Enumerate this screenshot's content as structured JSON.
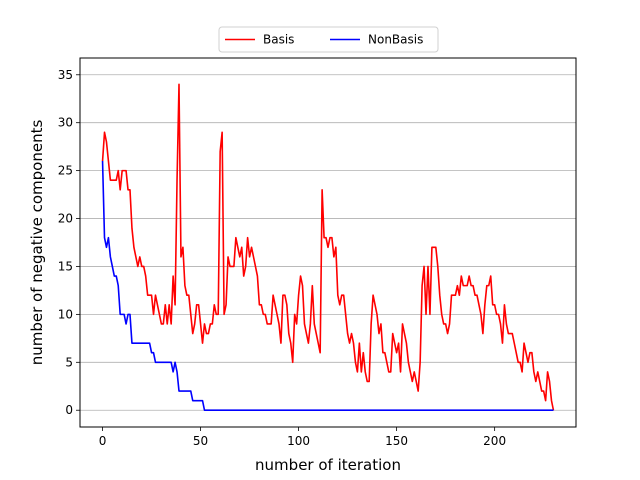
{
  "chart_data": {
    "type": "line",
    "title": "",
    "xlabel": "number of iteration",
    "ylabel": "number of negative components",
    "xlim": [
      -11.5,
      241.5
    ],
    "ylim": [
      -1.75,
      36.75
    ],
    "xticks": [
      0,
      50,
      100,
      150,
      200
    ],
    "yticks": [
      0,
      5,
      10,
      15,
      20,
      25,
      30,
      35
    ],
    "grid": "horizontal",
    "legend": "top-center",
    "series": [
      {
        "name": "Basis",
        "color": "#ff0000",
        "points": [
          [
            0,
            26
          ],
          [
            1,
            29
          ],
          [
            2,
            28
          ],
          [
            3,
            26
          ],
          [
            4,
            24
          ],
          [
            5,
            24
          ],
          [
            6,
            24
          ],
          [
            7,
            24
          ],
          [
            8,
            25
          ],
          [
            9,
            23
          ],
          [
            10,
            25
          ],
          [
            11,
            25
          ],
          [
            12,
            25
          ],
          [
            13,
            23
          ],
          [
            14,
            23
          ],
          [
            15,
            19
          ],
          [
            16,
            17
          ],
          [
            17,
            16
          ],
          [
            18,
            15
          ],
          [
            19,
            16
          ],
          [
            20,
            15
          ],
          [
            21,
            15
          ],
          [
            22,
            14
          ],
          [
            23,
            12
          ],
          [
            24,
            12
          ],
          [
            25,
            12
          ],
          [
            26,
            10
          ],
          [
            27,
            12
          ],
          [
            28,
            11
          ],
          [
            29,
            10
          ],
          [
            30,
            9
          ],
          [
            31,
            9
          ],
          [
            32,
            11
          ],
          [
            33,
            9
          ],
          [
            34,
            11
          ],
          [
            35,
            9
          ],
          [
            36,
            14
          ],
          [
            37,
            11
          ],
          [
            38,
            24
          ],
          [
            39,
            34
          ],
          [
            40,
            16
          ],
          [
            41,
            17
          ],
          [
            42,
            13
          ],
          [
            43,
            12
          ],
          [
            44,
            12
          ],
          [
            45,
            10
          ],
          [
            46,
            8
          ],
          [
            47,
            9
          ],
          [
            48,
            11
          ],
          [
            49,
            11
          ],
          [
            50,
            9
          ],
          [
            51,
            7
          ],
          [
            52,
            9
          ],
          [
            53,
            8
          ],
          [
            54,
            8
          ],
          [
            55,
            9
          ],
          [
            56,
            9
          ],
          [
            57,
            11
          ],
          [
            58,
            10
          ],
          [
            59,
            10
          ],
          [
            60,
            27
          ],
          [
            61,
            29
          ],
          [
            62,
            10
          ],
          [
            63,
            11
          ],
          [
            64,
            16
          ],
          [
            65,
            15
          ],
          [
            66,
            15
          ],
          [
            67,
            15
          ],
          [
            68,
            18
          ],
          [
            69,
            17
          ],
          [
            70,
            16
          ],
          [
            71,
            17
          ],
          [
            72,
            14
          ],
          [
            73,
            15
          ],
          [
            74,
            18
          ],
          [
            75,
            16
          ],
          [
            76,
            17
          ],
          [
            77,
            16
          ],
          [
            78,
            15
          ],
          [
            79,
            14
          ],
          [
            80,
            11
          ],
          [
            81,
            11
          ],
          [
            82,
            10
          ],
          [
            83,
            10
          ],
          [
            84,
            9
          ],
          [
            85,
            9
          ],
          [
            86,
            9
          ],
          [
            87,
            12
          ],
          [
            88,
            11
          ],
          [
            89,
            10
          ],
          [
            90,
            9
          ],
          [
            91,
            7
          ],
          [
            92,
            12
          ],
          [
            93,
            12
          ],
          [
            94,
            11
          ],
          [
            95,
            8
          ],
          [
            96,
            7
          ],
          [
            97,
            5
          ],
          [
            98,
            10
          ],
          [
            99,
            9
          ],
          [
            100,
            12
          ],
          [
            101,
            14
          ],
          [
            102,
            13
          ],
          [
            103,
            9
          ],
          [
            104,
            8
          ],
          [
            105,
            7
          ],
          [
            106,
            9
          ],
          [
            107,
            13
          ],
          [
            108,
            9
          ],
          [
            109,
            8
          ],
          [
            110,
            7
          ],
          [
            111,
            6
          ],
          [
            112,
            23
          ],
          [
            113,
            18
          ],
          [
            114,
            18
          ],
          [
            115,
            17
          ],
          [
            116,
            18
          ],
          [
            117,
            18
          ],
          [
            118,
            16
          ],
          [
            119,
            17
          ],
          [
            120,
            12
          ],
          [
            121,
            11
          ],
          [
            122,
            12
          ],
          [
            123,
            12
          ],
          [
            124,
            10
          ],
          [
            125,
            8
          ],
          [
            126,
            7
          ],
          [
            127,
            8
          ],
          [
            128,
            7
          ],
          [
            129,
            5
          ],
          [
            130,
            4
          ],
          [
            131,
            7
          ],
          [
            132,
            4
          ],
          [
            133,
            6
          ],
          [
            134,
            4
          ],
          [
            135,
            3
          ],
          [
            136,
            3
          ],
          [
            137,
            9
          ],
          [
            138,
            12
          ],
          [
            139,
            11
          ],
          [
            140,
            10
          ],
          [
            141,
            8
          ],
          [
            142,
            9
          ],
          [
            143,
            6
          ],
          [
            144,
            6
          ],
          [
            145,
            5
          ],
          [
            146,
            4
          ],
          [
            147,
            4
          ],
          [
            148,
            8
          ],
          [
            149,
            7
          ],
          [
            150,
            6
          ],
          [
            151,
            7
          ],
          [
            152,
            4
          ],
          [
            153,
            9
          ],
          [
            154,
            8
          ],
          [
            155,
            7
          ],
          [
            156,
            5
          ],
          [
            157,
            4
          ],
          [
            158,
            3
          ],
          [
            159,
            4
          ],
          [
            160,
            3
          ],
          [
            161,
            2
          ],
          [
            162,
            5
          ],
          [
            163,
            13
          ],
          [
            164,
            15
          ],
          [
            165,
            10
          ],
          [
            166,
            15
          ],
          [
            167,
            10
          ],
          [
            168,
            17
          ],
          [
            169,
            17
          ],
          [
            170,
            17
          ],
          [
            171,
            15
          ],
          [
            172,
            12
          ],
          [
            173,
            10
          ],
          [
            174,
            9
          ],
          [
            175,
            9
          ],
          [
            176,
            8
          ],
          [
            177,
            9
          ],
          [
            178,
            12
          ],
          [
            179,
            12
          ],
          [
            180,
            12
          ],
          [
            181,
            13
          ],
          [
            182,
            12
          ],
          [
            183,
            14
          ],
          [
            184,
            13
          ],
          [
            185,
            13
          ],
          [
            186,
            13
          ],
          [
            187,
            14
          ],
          [
            188,
            13
          ],
          [
            189,
            13
          ],
          [
            190,
            12
          ],
          [
            191,
            12
          ],
          [
            192,
            11
          ],
          [
            193,
            10
          ],
          [
            194,
            8
          ],
          [
            195,
            11
          ],
          [
            196,
            13
          ],
          [
            197,
            13
          ],
          [
            198,
            14
          ],
          [
            199,
            11
          ],
          [
            200,
            11
          ],
          [
            201,
            10
          ],
          [
            202,
            10
          ],
          [
            203,
            9
          ],
          [
            204,
            7
          ],
          [
            205,
            11
          ],
          [
            206,
            9
          ],
          [
            207,
            8
          ],
          [
            208,
            8
          ],
          [
            209,
            8
          ],
          [
            210,
            7
          ],
          [
            211,
            6
          ],
          [
            212,
            5
          ],
          [
            213,
            5
          ],
          [
            214,
            4
          ],
          [
            215,
            7
          ],
          [
            216,
            6
          ],
          [
            217,
            5
          ],
          [
            218,
            6
          ],
          [
            219,
            6
          ],
          [
            220,
            4
          ],
          [
            221,
            3
          ],
          [
            222,
            4
          ],
          [
            223,
            3
          ],
          [
            224,
            2
          ],
          [
            225,
            2
          ],
          [
            226,
            1
          ],
          [
            227,
            4
          ],
          [
            228,
            3
          ],
          [
            229,
            1
          ],
          [
            230,
            0
          ]
        ]
      },
      {
        "name": "NonBasis",
        "color": "#0000ff",
        "points": [
          [
            0,
            26
          ],
          [
            1,
            18
          ],
          [
            2,
            17
          ],
          [
            3,
            18
          ],
          [
            4,
            16
          ],
          [
            5,
            15
          ],
          [
            6,
            14
          ],
          [
            7,
            14
          ],
          [
            8,
            13
          ],
          [
            9,
            10
          ],
          [
            10,
            10
          ],
          [
            11,
            10
          ],
          [
            12,
            9
          ],
          [
            13,
            10
          ],
          [
            14,
            10
          ],
          [
            15,
            7
          ],
          [
            16,
            7
          ],
          [
            17,
            7
          ],
          [
            18,
            7
          ],
          [
            19,
            7
          ],
          [
            20,
            7
          ],
          [
            21,
            7
          ],
          [
            22,
            7
          ],
          [
            23,
            7
          ],
          [
            24,
            7
          ],
          [
            25,
            6
          ],
          [
            26,
            6
          ],
          [
            27,
            5
          ],
          [
            28,
            5
          ],
          [
            29,
            5
          ],
          [
            30,
            5
          ],
          [
            31,
            5
          ],
          [
            32,
            5
          ],
          [
            33,
            5
          ],
          [
            34,
            5
          ],
          [
            35,
            5
          ],
          [
            36,
            4
          ],
          [
            37,
            5
          ],
          [
            38,
            4
          ],
          [
            39,
            2
          ],
          [
            40,
            2
          ],
          [
            41,
            2
          ],
          [
            42,
            2
          ],
          [
            43,
            2
          ],
          [
            44,
            2
          ],
          [
            45,
            2
          ],
          [
            46,
            1
          ],
          [
            47,
            1
          ],
          [
            48,
            1
          ],
          [
            49,
            1
          ],
          [
            50,
            1
          ],
          [
            51,
            1
          ],
          [
            52,
            0
          ],
          [
            60,
            0
          ],
          [
            80,
            0
          ],
          [
            100,
            0
          ],
          [
            120,
            0
          ],
          [
            140,
            0
          ],
          [
            160,
            0
          ],
          [
            180,
            0
          ],
          [
            200,
            0
          ],
          [
            220,
            0
          ],
          [
            230,
            0
          ]
        ]
      }
    ]
  }
}
